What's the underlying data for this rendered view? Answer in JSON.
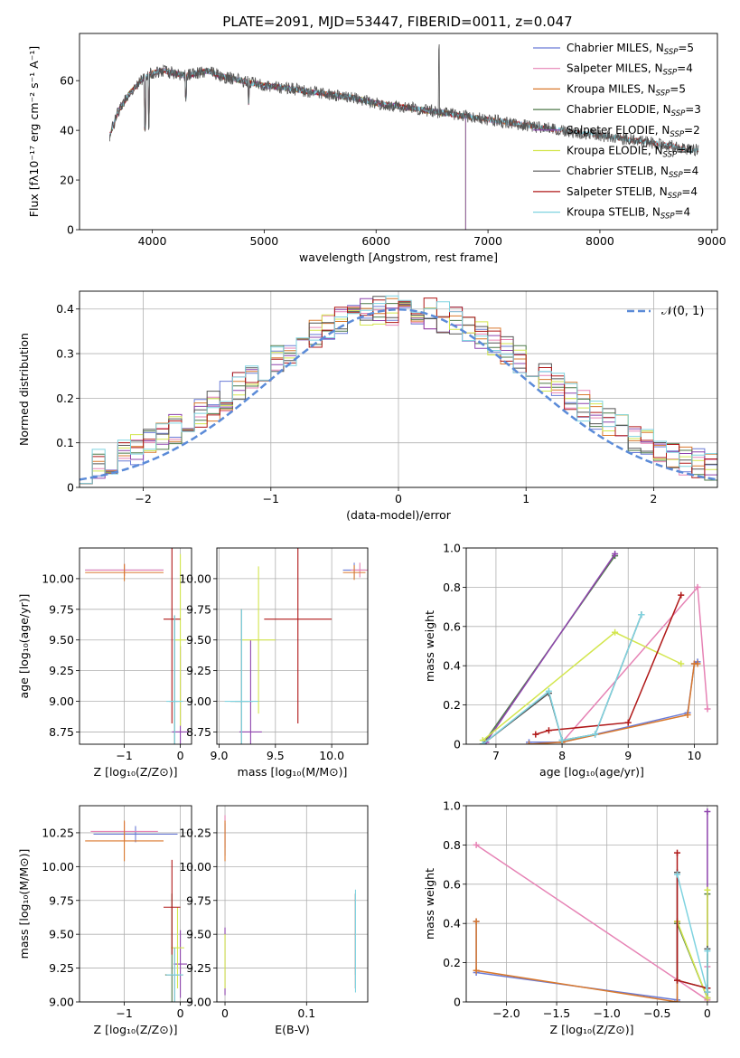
{
  "figure_title": "PLATE=2091, MJD=53447, FIBERID=0011, z=0.047",
  "colors": {
    "chabrier_miles": "#6a7bd6",
    "salpeter_miles": "#e683b5",
    "kroupa_miles": "#d9782c",
    "chabrier_elodie": "#4f7a4a",
    "salpeter_elodie": "#8e44ad",
    "kroupa_elodie": "#d3e64e",
    "chabrier_stelib": "#555555",
    "salpeter_stelib": "#b01818",
    "kroupa_stelib": "#7fd3e0",
    "normal_curve": "#5b8bd8",
    "grid": "#b0b0b0"
  },
  "legend_main": [
    {
      "key": "chabrier_miles",
      "label": "Chabrier MILES, N",
      "sub": "SSP",
      "tail": "=5"
    },
    {
      "key": "salpeter_miles",
      "label": "Salpeter MILES, N",
      "sub": "SSP",
      "tail": "=4"
    },
    {
      "key": "kroupa_miles",
      "label": "Kroupa MILES, N",
      "sub": "SSP",
      "tail": "=5"
    },
    {
      "key": "chabrier_elodie",
      "label": "Chabrier ELODIE, N",
      "sub": "SSP",
      "tail": "=3"
    },
    {
      "key": "salpeter_elodie",
      "label": "Salpeter ELODIE, N",
      "sub": "SSP",
      "tail": "=2"
    },
    {
      "key": "kroupa_elodie",
      "label": "Kroupa ELODIE, N",
      "sub": "SSP",
      "tail": "=4"
    },
    {
      "key": "chabrier_stelib",
      "label": "Chabrier STELIB, N",
      "sub": "SSP",
      "tail": "=4"
    },
    {
      "key": "salpeter_stelib",
      "label": "Salpeter STELIB, N",
      "sub": "SSP",
      "tail": "=4"
    },
    {
      "key": "kroupa_stelib",
      "label": "Kroupa STELIB, N",
      "sub": "SSP",
      "tail": "=4"
    }
  ],
  "chart_data": [
    {
      "id": "spectrum",
      "type": "line",
      "xlabel": "wavelength [Angstrom, rest frame]",
      "ylabel": "Flux [fλ10⁻¹⁷ erg cm⁻² s⁻¹ A⁻¹]",
      "xlim": [
        3350,
        9050
      ],
      "ylim": [
        0,
        79
      ],
      "xticks": [
        4000,
        5000,
        6000,
        7000,
        8000,
        9000
      ],
      "yticks": [
        0,
        20,
        40,
        60
      ],
      "continuum": [
        [
          3620,
          38
        ],
        [
          3700,
          48
        ],
        [
          3800,
          55
        ],
        [
          3900,
          60
        ],
        [
          4000,
          63
        ],
        [
          4100,
          64
        ],
        [
          4200,
          63
        ],
        [
          4300,
          62
        ],
        [
          4400,
          63
        ],
        [
          4500,
          64
        ],
        [
          4600,
          62
        ],
        [
          4800,
          60
        ],
        [
          5000,
          58
        ],
        [
          5200,
          57
        ],
        [
          5500,
          55
        ],
        [
          5800,
          53
        ],
        [
          6000,
          51
        ],
        [
          6300,
          49
        ],
        [
          6600,
          47
        ],
        [
          6900,
          45
        ],
        [
          7200,
          43
        ],
        [
          7500,
          41
        ],
        [
          7800,
          39
        ],
        [
          8000,
          38
        ],
        [
          8300,
          36
        ],
        [
          8600,
          34
        ],
        [
          8800,
          32
        ],
        [
          8880,
          32
        ]
      ],
      "series_extent": {
        "chabrier_miles": [
          3620,
          7420
        ],
        "salpeter_miles": [
          3620,
          7420
        ],
        "kroupa_miles": [
          3620,
          7420
        ],
        "chabrier_elodie": [
          3620,
          6800
        ],
        "salpeter_elodie": [
          3620,
          6800
        ],
        "kroupa_elodie": [
          3620,
          6800
        ],
        "chabrier_stelib": [
          3620,
          8880
        ],
        "salpeter_stelib": [
          3620,
          8880
        ],
        "kroupa_stelib": [
          3620,
          8880
        ]
      }
    },
    {
      "id": "residuals",
      "type": "area",
      "xlabel": "(data-model)/error",
      "ylabel": "Normed distribution",
      "xlim": [
        -2.5,
        2.5
      ],
      "ylim": [
        0,
        0.44
      ],
      "xticks": [
        -2,
        -1,
        0,
        1,
        2
      ],
      "yticks": [
        0.0,
        0.1,
        0.2,
        0.3,
        0.4
      ],
      "legend": "𝒩(0, 1)",
      "normal": {
        "mu": 0,
        "sigma": 1
      },
      "bins": 50
    },
    {
      "id": "age_vs_Z",
      "type": "scatter",
      "xlabel": "Z [log₁₀(Z/Z⊙)]",
      "ylabel": "age  [log₁₀(age/yr)]",
      "xlim": [
        -1.8,
        0.2
      ],
      "ylim": [
        8.65,
        10.25
      ],
      "xticks": [
        -1,
        0
      ],
      "yticks": [
        8.75,
        9.0,
        9.25,
        9.5,
        9.75,
        10.0
      ],
      "points": [
        {
          "s": "chabrier_miles",
          "x": -1.0,
          "y": 10.07,
          "xe": 0.7,
          "ye": 0.05
        },
        {
          "s": "salpeter_miles",
          "x": -1.0,
          "y": 10.07,
          "xe": 0.7,
          "ye": 0.05
        },
        {
          "s": "kroupa_miles",
          "x": -1.0,
          "y": 10.05,
          "xe": 0.7,
          "ye": 0.07
        },
        {
          "s": "chabrier_elodie",
          "x": -0.1,
          "y": 9.0,
          "xe": 0.05,
          "ye": 0.7
        },
        {
          "s": "salpeter_elodie",
          "x": 0.0,
          "y": 8.75,
          "xe": 0.15,
          "ye": 0.7
        },
        {
          "s": "kroupa_elodie",
          "x": 0.0,
          "y": 9.5,
          "xe": 0.1,
          "ye": 0.7
        },
        {
          "s": "chabrier_stelib",
          "x": -0.1,
          "y": 9.0,
          "xe": 0.1,
          "ye": 0.7
        },
        {
          "s": "salpeter_stelib",
          "x": -0.15,
          "y": 9.67,
          "xe": 0.15,
          "ye": 0.85
        },
        {
          "s": "kroupa_stelib",
          "x": -0.1,
          "y": 9.0,
          "xe": 0.15,
          "ye": 0.7
        }
      ]
    },
    {
      "id": "age_vs_mass",
      "type": "scatter",
      "xlabel": "mass [log₁₀(M/M⊙)]",
      "ylabel": "",
      "xlim": [
        8.98,
        10.32
      ],
      "ylim": [
        8.65,
        10.25
      ],
      "xticks": [
        9.0,
        9.5,
        10.0
      ],
      "yticks": [
        8.75,
        9.0,
        9.25,
        9.5,
        9.75,
        10.0
      ],
      "points": [
        {
          "s": "chabrier_miles",
          "x": 10.2,
          "y": 10.07,
          "xe": 0.1,
          "ye": 0.06
        },
        {
          "s": "salpeter_miles",
          "x": 10.25,
          "y": 10.07,
          "xe": 0.08,
          "ye": 0.06
        },
        {
          "s": "kroupa_miles",
          "x": 10.2,
          "y": 10.05,
          "xe": 0.1,
          "ye": 0.06
        },
        {
          "s": "chabrier_elodie",
          "x": 9.2,
          "y": 9.0,
          "xe": 0.06,
          "ye": 0.75
        },
        {
          "s": "salpeter_elodie",
          "x": 9.28,
          "y": 8.75,
          "xe": 0.1,
          "ye": 0.75
        },
        {
          "s": "kroupa_elodie",
          "x": 9.35,
          "y": 9.5,
          "xe": 0.15,
          "ye": 0.6
        },
        {
          "s": "chabrier_stelib",
          "x": 9.2,
          "y": 9.0,
          "xe": 0.1,
          "ye": 0.75
        },
        {
          "s": "salpeter_stelib",
          "x": 9.7,
          "y": 9.67,
          "xe": 0.3,
          "ye": 0.85
        },
        {
          "s": "kroupa_stelib",
          "x": 9.2,
          "y": 9.0,
          "xe": 0.15,
          "ye": 0.75
        }
      ]
    },
    {
      "id": "weight_vs_age",
      "type": "line",
      "xlabel": "age  [log₁₀(age/yr)]",
      "ylabel": "mass weight",
      "xlim": [
        6.55,
        10.35
      ],
      "ylim": [
        0,
        1
      ],
      "xticks": [
        7,
        8,
        9,
        10
      ],
      "yticks": [
        0.0,
        0.2,
        0.4,
        0.6,
        0.8,
        1.0
      ],
      "series": [
        {
          "s": "chabrier_miles",
          "x": [
            7.5,
            8.0,
            9.9,
            10.0,
            10.05
          ],
          "y": [
            0.01,
            0.01,
            0.16,
            0.41,
            0.42
          ]
        },
        {
          "s": "salpeter_miles",
          "x": [
            8.0,
            10.05,
            10.2
          ],
          "y": [
            0.01,
            0.8,
            0.18
          ]
        },
        {
          "s": "kroupa_miles",
          "x": [
            7.5,
            8.0,
            9.9,
            10.0,
            10.05
          ],
          "y": [
            0.0,
            0.01,
            0.15,
            0.41,
            0.41
          ]
        },
        {
          "s": "chabrier_elodie",
          "x": [
            6.8,
            8.8
          ],
          "y": [
            0.0,
            0.96
          ]
        },
        {
          "s": "salpeter_elodie",
          "x": [
            6.85,
            8.8
          ],
          "y": [
            0.01,
            0.97
          ]
        },
        {
          "s": "kroupa_elodie",
          "x": [
            6.8,
            8.8,
            9.8
          ],
          "y": [
            0.02,
            0.57,
            0.41
          ]
        },
        {
          "s": "chabrier_stelib",
          "x": [
            6.8,
            7.8,
            8.0,
            8.5,
            9.2
          ],
          "y": [
            0.0,
            0.26,
            0.02,
            0.05,
            0.66
          ]
        },
        {
          "s": "salpeter_stelib",
          "x": [
            7.6,
            7.8,
            9.0,
            9.8
          ],
          "y": [
            0.05,
            0.07,
            0.11,
            0.76
          ]
        },
        {
          "s": "kroupa_stelib",
          "x": [
            6.8,
            7.8,
            8.0,
            8.5,
            9.2
          ],
          "y": [
            0.0,
            0.27,
            0.02,
            0.05,
            0.66
          ]
        }
      ]
    },
    {
      "id": "mass_vs_Z",
      "type": "scatter",
      "xlabel": "Z [log₁₀(Z/Z⊙)]",
      "ylabel": "mass [log₁₀(M/M⊙)]",
      "xlim": [
        -1.8,
        0.2
      ],
      "ylim": [
        9.0,
        10.45
      ],
      "xticks": [
        -1,
        0
      ],
      "yticks": [
        9.0,
        9.25,
        9.5,
        9.75,
        10.0,
        10.25
      ],
      "points": [
        {
          "s": "chabrier_miles",
          "x": -0.8,
          "y": 10.24,
          "xe": 0.75,
          "ye": 0.06
        },
        {
          "s": "salpeter_miles",
          "x": -1.0,
          "y": 10.26,
          "xe": 0.6,
          "ye": 0.07
        },
        {
          "s": "kroupa_miles",
          "x": -1.0,
          "y": 10.19,
          "xe": 0.7,
          "ye": 0.15
        },
        {
          "s": "chabrier_elodie",
          "x": -0.15,
          "y": 9.2,
          "xe": 0.12,
          "ye": 0.6
        },
        {
          "s": "salpeter_elodie",
          "x": 0.0,
          "y": 9.28,
          "xe": 0.12,
          "ye": 0.25
        },
        {
          "s": "kroupa_elodie",
          "x": -0.05,
          "y": 9.4,
          "xe": 0.12,
          "ye": 0.3
        },
        {
          "s": "chabrier_stelib",
          "x": -0.1,
          "y": 9.2,
          "xe": 0.15,
          "ye": 0.2
        },
        {
          "s": "salpeter_stelib",
          "x": -0.15,
          "y": 9.7,
          "xe": 0.15,
          "ye": 0.35
        },
        {
          "s": "kroupa_stelib",
          "x": -0.1,
          "y": 9.2,
          "xe": 0.15,
          "ye": 0.2
        }
      ]
    },
    {
      "id": "mass_vs_EBV",
      "type": "scatter",
      "xlabel": "E(B-V)",
      "ylabel": "",
      "xlim": [
        -0.01,
        0.175
      ],
      "ylim": [
        9.0,
        10.45
      ],
      "xticks": [
        0.0,
        0.1
      ],
      "yticks": [
        9.0,
        9.25,
        9.5,
        9.75,
        10.0,
        10.25
      ],
      "points": [
        {
          "s": "chabrier_miles",
          "x": 0.0,
          "y": 10.2,
          "xe": 0.0,
          "ye": 0.12
        },
        {
          "s": "salpeter_miles",
          "x": 0.0,
          "y": 10.26,
          "xe": 0.0,
          "ye": 0.12
        },
        {
          "s": "kroupa_miles",
          "x": 0.0,
          "y": 10.19,
          "xe": 0.0,
          "ye": 0.15
        },
        {
          "s": "chabrier_elodie",
          "x": 0.16,
          "y": 9.5,
          "xe": 0.0,
          "ye": 0.3
        },
        {
          "s": "salpeter_elodie",
          "x": 0.0,
          "y": 9.3,
          "xe": 0.0,
          "ye": 0.25
        },
        {
          "s": "kroupa_elodie",
          "x": 0.0,
          "y": 9.3,
          "xe": 0.0,
          "ye": 0.2
        },
        {
          "s": "chabrier_stelib",
          "x": 0.16,
          "y": 9.45,
          "xe": 0.0,
          "ye": 0.35
        },
        {
          "s": "salpeter_stelib",
          "x": 0.16,
          "y": 9.45,
          "xe": 0.0,
          "ye": 0.35
        },
        {
          "s": "kroupa_stelib",
          "x": 0.16,
          "y": 9.45,
          "xe": 0.0,
          "ye": 0.38
        }
      ]
    },
    {
      "id": "weight_vs_Z",
      "type": "line",
      "xlabel": "Z [log₁₀(Z/Z⊙)]",
      "ylabel": "mass weight",
      "xlim": [
        -2.4,
        0.1
      ],
      "ylim": [
        0,
        1
      ],
      "xticks": [
        -2.0,
        -1.5,
        -1.0,
        -0.5,
        0.0
      ],
      "yticks": [
        0.0,
        0.2,
        0.4,
        0.6,
        0.8,
        1.0
      ],
      "series": [
        {
          "s": "chabrier_miles",
          "x": [
            -2.3,
            -2.3,
            -0.3,
            -0.3
          ],
          "y": [
            0.41,
            0.15,
            0.01,
            0.41
          ]
        },
        {
          "s": "salpeter_miles",
          "x": [
            -2.3,
            0.0,
            0.0
          ],
          "y": [
            0.8,
            0.01,
            0.18
          ]
        },
        {
          "s": "kroupa_miles",
          "x": [
            -2.3,
            -2.3,
            -0.3,
            -0.3
          ],
          "y": [
            0.41,
            0.16,
            0.0,
            0.41
          ]
        },
        {
          "s": "chabrier_elodie",
          "x": [
            -0.3,
            0.0,
            0.0
          ],
          "y": [
            0.4,
            0.02,
            0.55
          ]
        },
        {
          "s": "salpeter_elodie",
          "x": [
            0.0,
            0.0
          ],
          "y": [
            0.02,
            0.97
          ]
        },
        {
          "s": "kroupa_elodie",
          "x": [
            -0.3,
            0.0,
            0.0
          ],
          "y": [
            0.41,
            0.02,
            0.57
          ]
        },
        {
          "s": "chabrier_stelib",
          "x": [
            -0.3,
            -0.3,
            0.0,
            0.0
          ],
          "y": [
            0.66,
            0.11,
            0.07,
            0.27
          ]
        },
        {
          "s": "salpeter_stelib",
          "x": [
            -0.3,
            -0.3,
            0.0,
            0.0
          ],
          "y": [
            0.76,
            0.11,
            0.07,
            0.05
          ]
        },
        {
          "s": "kroupa_stelib",
          "x": [
            -0.3,
            0.0,
            0.0
          ],
          "y": [
            0.65,
            0.05,
            0.26
          ]
        }
      ]
    }
  ]
}
